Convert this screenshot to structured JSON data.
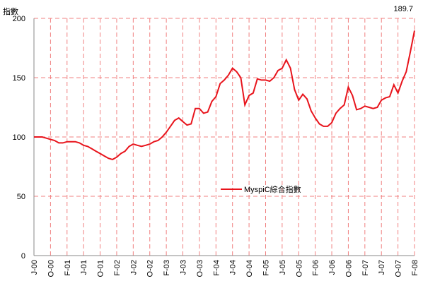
{
  "chart_data": {
    "type": "line",
    "y_label": "指數",
    "categories": [
      "J-00",
      null,
      null,
      null,
      "O-00",
      null,
      null,
      null,
      "F-01",
      null,
      null,
      null,
      "J-01",
      null,
      null,
      null,
      "O-01",
      null,
      null,
      null,
      "F-02",
      null,
      null,
      null,
      "J-02",
      null,
      null,
      null,
      "O-02",
      null,
      null,
      null,
      "F-03",
      null,
      null,
      null,
      "J-03",
      null,
      null,
      null,
      "O-03",
      null,
      null,
      null,
      "F-04",
      null,
      null,
      null,
      "J-04",
      null,
      null,
      null,
      "O-04",
      null,
      null,
      null,
      "F-05",
      null,
      null,
      null,
      "J-05",
      null,
      null,
      null,
      "O-05",
      null,
      null,
      null,
      "F-06",
      null,
      null,
      null,
      "J-06",
      null,
      null,
      null,
      "O-06",
      null,
      null,
      null,
      "F-07",
      null,
      null,
      null,
      "J-07",
      null,
      null,
      null,
      "O-07",
      null,
      null,
      null,
      "F-08"
    ],
    "series": [
      {
        "name": "MyspiC綜合指數",
        "color": "#e8141c",
        "values": [
          100,
          100,
          100,
          99,
          98,
          97,
          95,
          95,
          96,
          96,
          96,
          95,
          93,
          92,
          90,
          88,
          86,
          84,
          82,
          81,
          83,
          86,
          88,
          92,
          94,
          93,
          92,
          93,
          94,
          96,
          97,
          100,
          104,
          109,
          114,
          116,
          113,
          110,
          111,
          124,
          124,
          120,
          121,
          130,
          134,
          145,
          148,
          152,
          158,
          155,
          150,
          127,
          135,
          137,
          149,
          148,
          148,
          147,
          150,
          156,
          158,
          165,
          158,
          140,
          131,
          136,
          132,
          122,
          116,
          111,
          109,
          109,
          112,
          120,
          124,
          127,
          142,
          135,
          123,
          124,
          126,
          125,
          124,
          125,
          131,
          133,
          134,
          144,
          137,
          147,
          155,
          172,
          189.7
        ]
      }
    ],
    "ylim": [
      0,
      200
    ],
    "yticks": [
      0,
      50,
      100,
      150,
      200
    ],
    "grid": true,
    "grid_color": "#f08080"
  }
}
